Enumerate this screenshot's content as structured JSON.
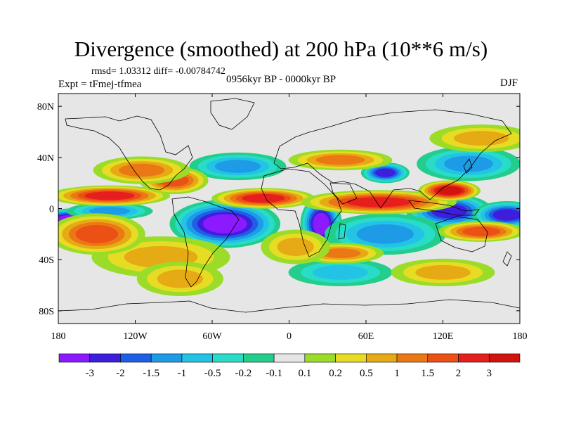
{
  "chart_data": {
    "type": "heatmap",
    "title": "Divergence (smoothed) at 200 hPa (10**6 m/s)",
    "stats_text": "rmsd= 1.03312 diff= -0.00784742",
    "experiment_text": "Expt = tFmej-tfmea",
    "period_text": "0956kyr BP - 0000kyr BP",
    "season": "DJF",
    "x_ticks": [
      "180",
      "120W",
      "60W",
      "0",
      "60E",
      "120E",
      "180"
    ],
    "y_ticks": [
      "80N",
      "40N",
      "0",
      "40S",
      "80S"
    ],
    "x_tick_values": [
      -180,
      -120,
      -60,
      0,
      60,
      120,
      180
    ],
    "y_tick_values": [
      80,
      40,
      0,
      -40,
      -80
    ],
    "xlim": [
      -180,
      180
    ],
    "ylim": [
      -90,
      90
    ],
    "levels": [
      "-3",
      "-2",
      "-1.5",
      "-1",
      "-0.5",
      "-0.2",
      "-0.1",
      "0.1",
      "0.2",
      "0.5",
      "1",
      "1.5",
      "2",
      "3"
    ],
    "colors": [
      "#8c1aff",
      "#3c1edc",
      "#1f5fe6",
      "#1e9be6",
      "#23c3e6",
      "#28dcc8",
      "#23cd8c",
      "#e6e6e6",
      "#9bdc28",
      "#e6dc23",
      "#e6aa14",
      "#eb7814",
      "#eb5014",
      "#e61e1e",
      "#d2140f"
    ],
    "features": [
      {
        "lon": -50,
        "lat": -12,
        "rx": 32,
        "ry": 14,
        "v": -3.2
      },
      {
        "lon": -165,
        "lat": -8,
        "rx": 30,
        "ry": 6,
        "v": -3.0
      },
      {
        "lon": 25,
        "lat": -12,
        "rx": 12,
        "ry": 16,
        "v": -3.0
      },
      {
        "lon": 125,
        "lat": -2,
        "rx": 25,
        "ry": 10,
        "v": -2.4
      },
      {
        "lon": 170,
        "lat": -5,
        "rx": 20,
        "ry": 8,
        "v": -2.2
      },
      {
        "lon": 75,
        "lat": 28,
        "rx": 14,
        "ry": 6,
        "v": -2.0
      },
      {
        "lon": 75,
        "lat": -20,
        "rx": 35,
        "ry": 12,
        "v": -1.2
      },
      {
        "lon": -140,
        "lat": -2,
        "rx": 25,
        "ry": 5,
        "v": -1.2
      },
      {
        "lon": 140,
        "lat": 35,
        "rx": 30,
        "ry": 10,
        "v": -1.0
      },
      {
        "lon": -40,
        "lat": 33,
        "rx": 28,
        "ry": 8,
        "v": -1.0
      },
      {
        "lon": 40,
        "lat": -50,
        "rx": 30,
        "ry": 8,
        "v": -0.6
      },
      {
        "lon": -100,
        "lat": -38,
        "rx": 40,
        "ry": 12,
        "v": 0.5
      },
      {
        "lon": -140,
        "lat": 10,
        "rx": 35,
        "ry": 6,
        "v": 2.0
      },
      {
        "lon": -150,
        "lat": -20,
        "rx": 28,
        "ry": 12,
        "v": 1.5
      },
      {
        "lon": -20,
        "lat": 8,
        "rx": 30,
        "ry": 6,
        "v": 2.2
      },
      {
        "lon": 70,
        "lat": 5,
        "rx": 45,
        "ry": 7,
        "v": 2.5
      },
      {
        "lon": 125,
        "lat": 14,
        "rx": 18,
        "ry": 6,
        "v": 3.2
      },
      {
        "lon": 150,
        "lat": -18,
        "rx": 25,
        "ry": 6,
        "v": 1.8
      },
      {
        "lon": -90,
        "lat": 22,
        "rx": 20,
        "ry": 8,
        "v": 1.8
      },
      {
        "lon": 40,
        "lat": 38,
        "rx": 30,
        "ry": 6,
        "v": 1.0
      },
      {
        "lon": -115,
        "lat": 30,
        "rx": 28,
        "ry": 8,
        "v": 1.0
      },
      {
        "lon": -85,
        "lat": -55,
        "rx": 25,
        "ry": 10,
        "v": 0.8
      },
      {
        "lon": 40,
        "lat": -35,
        "rx": 25,
        "ry": 6,
        "v": 1.2
      },
      {
        "lon": 5,
        "lat": -30,
        "rx": 20,
        "ry": 10,
        "v": 0.8
      },
      {
        "lon": 120,
        "lat": -50,
        "rx": 30,
        "ry": 8,
        "v": 0.6
      },
      {
        "lon": 150,
        "lat": 55,
        "rx": 30,
        "ry": 8,
        "v": 0.5
      }
    ]
  }
}
